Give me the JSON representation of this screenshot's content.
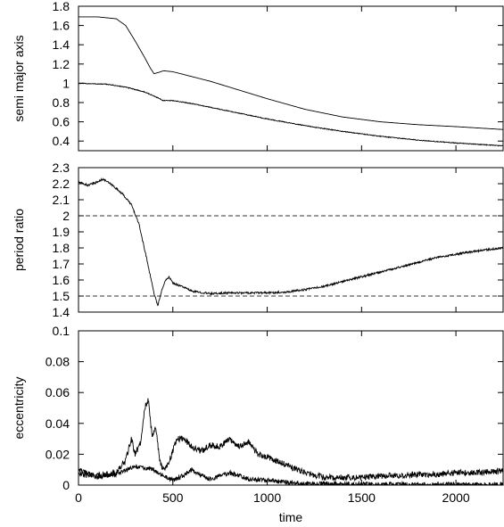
{
  "chart_data": [
    {
      "type": "line",
      "title": "",
      "xlabel": "",
      "ylabel": "semi major axis",
      "xlim": [
        0,
        2250
      ],
      "ylim": [
        0.3,
        1.8
      ],
      "xticks": [
        0,
        500,
        1000,
        1500,
        2000
      ],
      "yticks": [
        0.4,
        0.6,
        0.8,
        1,
        1.2,
        1.4,
        1.6,
        1.8
      ],
      "ytick_labels": [
        "0.4",
        "0.6",
        "0.8",
        "1",
        "1.2",
        "1.4",
        "1.6",
        "1.8"
      ],
      "grid": false,
      "series": [
        {
          "x": [
            0,
            100,
            200,
            250,
            300,
            350,
            380,
            400,
            420,
            450,
            500,
            600,
            700,
            800,
            900,
            1000,
            1200,
            1400,
            1600,
            1800,
            2000,
            2250
          ],
          "y": [
            1.69,
            1.69,
            1.67,
            1.6,
            1.44,
            1.27,
            1.16,
            1.1,
            1.11,
            1.13,
            1.12,
            1.07,
            1.02,
            0.96,
            0.9,
            0.84,
            0.73,
            0.65,
            0.6,
            0.57,
            0.55,
            0.52
          ],
          "noise": 0
        },
        {
          "x": [
            0,
            150,
            250,
            350,
            420,
            450,
            500,
            600,
            700,
            800,
            900,
            1000,
            1200,
            1400,
            1600,
            1800,
            2000,
            2250
          ],
          "y": [
            1.0,
            0.99,
            0.96,
            0.91,
            0.85,
            0.82,
            0.82,
            0.79,
            0.75,
            0.71,
            0.67,
            0.63,
            0.56,
            0.5,
            0.45,
            0.41,
            0.38,
            0.35
          ],
          "noise": 0.004
        }
      ],
      "hlines": []
    },
    {
      "type": "line",
      "title": "",
      "xlabel": "",
      "ylabel": "period ratio",
      "xlim": [
        0,
        2250
      ],
      "ylim": [
        1.4,
        2.3
      ],
      "xticks": [
        0,
        500,
        1000,
        1500,
        2000
      ],
      "yticks": [
        1.4,
        1.5,
        1.6,
        1.7,
        1.8,
        1.9,
        2,
        2.1,
        2.2,
        2.3
      ],
      "ytick_labels": [
        "1.4",
        "1.5",
        "1.6",
        "1.7",
        "1.8",
        "1.9",
        "2",
        "2.1",
        "2.2",
        "2.3"
      ],
      "grid": false,
      "series": [
        {
          "x": [
            0,
            50,
            100,
            130,
            180,
            230,
            280,
            320,
            360,
            400,
            420,
            440,
            460,
            480,
            500,
            550,
            600,
            700,
            800,
            900,
            1000,
            1100,
            1200,
            1300,
            1400,
            1500,
            1600,
            1700,
            1800,
            1900,
            2000,
            2100,
            2250
          ],
          "y": [
            2.21,
            2.19,
            2.21,
            2.23,
            2.19,
            2.14,
            2.07,
            1.95,
            1.74,
            1.52,
            1.44,
            1.53,
            1.6,
            1.62,
            1.58,
            1.56,
            1.53,
            1.515,
            1.52,
            1.52,
            1.52,
            1.525,
            1.54,
            1.56,
            1.59,
            1.62,
            1.65,
            1.68,
            1.71,
            1.74,
            1.76,
            1.78,
            1.8
          ],
          "noise": 0.006
        }
      ],
      "hlines": [
        {
          "y": 2.0,
          "style": "dashed"
        },
        {
          "y": 1.5,
          "style": "dashed"
        }
      ]
    },
    {
      "type": "line",
      "title": "",
      "xlabel": "time",
      "ylabel": "eccentricity",
      "xlim": [
        0,
        2250
      ],
      "ylim": [
        0,
        0.1
      ],
      "xticks": [
        0,
        500,
        1000,
        1500,
        2000
      ],
      "xtick_labels": [
        "0",
        "500",
        "1000",
        "1500",
        "2000"
      ],
      "yticks": [
        0,
        0.02,
        0.04,
        0.06,
        0.08,
        0.1
      ],
      "ytick_labels": [
        "0",
        "0.02",
        "0.04",
        "0.06",
        "0.08",
        "0.1"
      ],
      "grid": false,
      "series": [
        {
          "x": [
            0,
            100,
            200,
            250,
            280,
            300,
            330,
            350,
            370,
            390,
            410,
            430,
            450,
            480,
            520,
            560,
            600,
            650,
            700,
            750,
            800,
            850,
            900,
            950,
            1000,
            1100,
            1200,
            1300,
            1400,
            1500,
            1600,
            1700,
            1800,
            1900,
            2000,
            2100,
            2250
          ],
          "y": [
            0.007,
            0.006,
            0.008,
            0.016,
            0.03,
            0.02,
            0.028,
            0.05,
            0.055,
            0.032,
            0.038,
            0.015,
            0.01,
            0.015,
            0.03,
            0.03,
            0.025,
            0.022,
            0.026,
            0.025,
            0.03,
            0.025,
            0.028,
            0.02,
            0.018,
            0.013,
            0.008,
            0.005,
            0.005,
            0.005,
            0.006,
            0.006,
            0.007,
            0.007,
            0.008,
            0.008,
            0.009
          ],
          "noise": 0.002
        },
        {
          "x": [
            0,
            100,
            200,
            300,
            400,
            450,
            500,
            550,
            600,
            650,
            700,
            750,
            800,
            850,
            900,
            1000,
            1100,
            1200,
            1300,
            1500,
            1800,
            2250
          ],
          "y": [
            0.01,
            0.005,
            0.007,
            0.012,
            0.01,
            0.006,
            0.003,
            0.006,
            0.01,
            0.006,
            0.004,
            0.006,
            0.008,
            0.006,
            0.004,
            0.003,
            0.002,
            0.001,
            0.001,
            0.0005,
            0.0005,
            0.0005
          ],
          "noise": 0.0015
        }
      ],
      "hlines": []
    }
  ]
}
